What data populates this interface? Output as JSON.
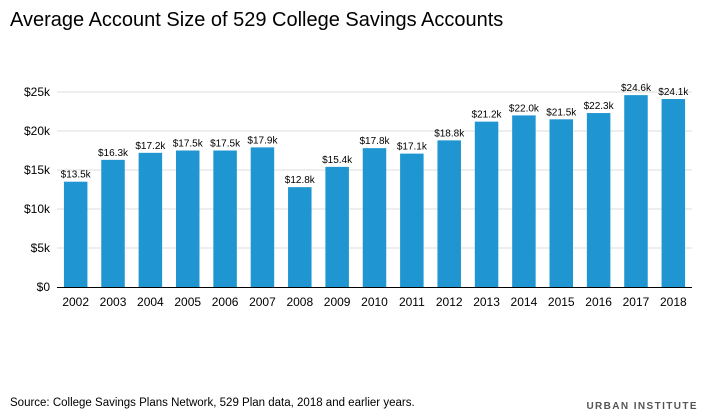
{
  "title": "Average Account Size of 529 College Savings Accounts",
  "source": "Source: College Savings Plans Network, 529 Plan data, 2018 and earlier years.",
  "brand": "URBAN INSTITUTE",
  "colors": {
    "bar": "#1f96d2",
    "grid": "#dedede",
    "axis": "#000000"
  },
  "chart_data": {
    "type": "bar",
    "categories": [
      "2002",
      "2003",
      "2004",
      "2005",
      "2006",
      "2007",
      "2008",
      "2009",
      "2010",
      "2011",
      "2012",
      "2013",
      "2014",
      "2015",
      "2016",
      "2017",
      "2018"
    ],
    "values": [
      13.5,
      16.3,
      17.2,
      17.5,
      17.5,
      17.9,
      12.8,
      15.4,
      17.8,
      17.1,
      18.8,
      21.2,
      22.0,
      21.5,
      22.3,
      24.6,
      24.1
    ],
    "data_labels": [
      "$13.5k",
      "$16.3k",
      "$17.2k",
      "$17.5k",
      "$17.5k",
      "$17.9k",
      "$12.8k",
      "$15.4k",
      "$17.8k",
      "$17.1k",
      "$18.8k",
      "$21.2k",
      "$22.0k",
      "$21.5k",
      "$22.3k",
      "$24.6k",
      "$24.1k"
    ],
    "y_ticks": [
      0,
      5,
      10,
      15,
      20,
      25
    ],
    "y_tick_labels": [
      "$0",
      "$5k",
      "$10k",
      "$15k",
      "$20k",
      "$25k"
    ],
    "ylim": [
      0,
      25
    ],
    "title": "Average Account Size of 529 College Savings Accounts",
    "xlabel": "",
    "ylabel": "",
    "grid": true,
    "legend": "none"
  }
}
